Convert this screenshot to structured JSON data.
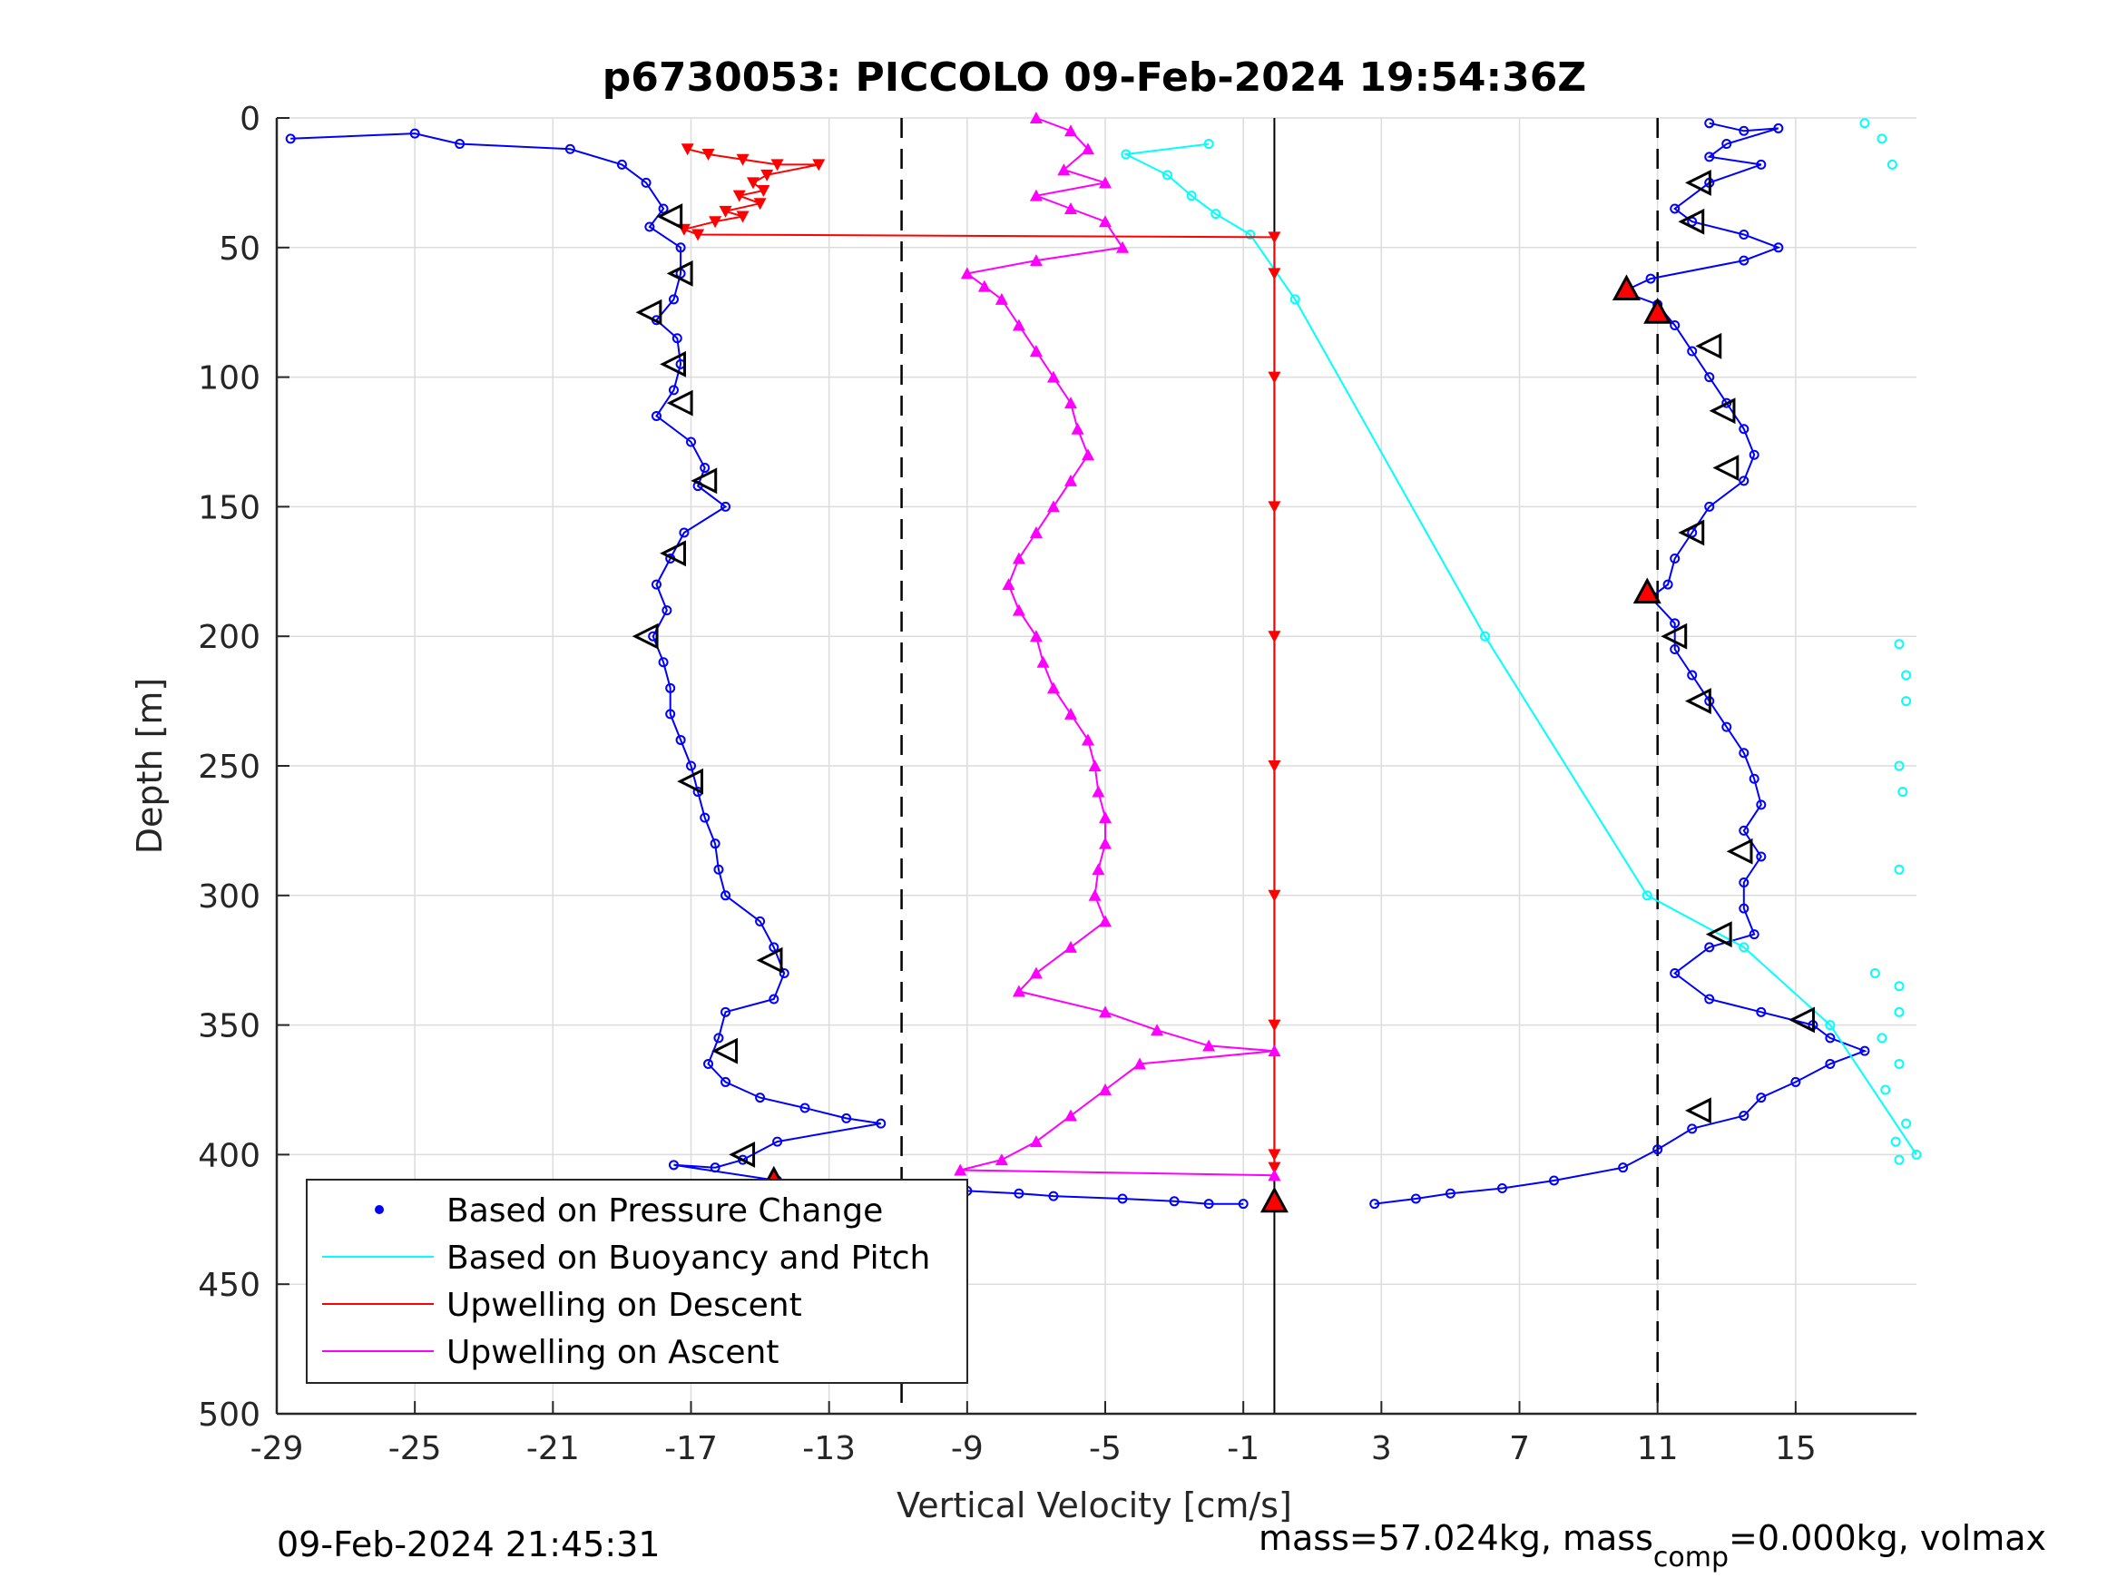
{
  "chart_data": {
    "type": "scatter",
    "title": "p6730053: PICCOLO 09-Feb-2024 19:54:36Z",
    "xlabel": "Vertical Velocity [cm/s]",
    "ylabel": "Depth [m]",
    "xlim": [
      -29,
      18.5
    ],
    "ylim": [
      0,
      500
    ],
    "y_reversed": true,
    "grid": true,
    "xticks": [
      -29,
      -25,
      -21,
      -17,
      -13,
      -9,
      -5,
      -1,
      3,
      7,
      11,
      15
    ],
    "xtick_labels": [
      "-29",
      "-25",
      "-21",
      "-17",
      "-13",
      "-9",
      "-5",
      "-1",
      "3",
      "7",
      "11",
      "15"
    ],
    "yticks": [
      0,
      50,
      100,
      150,
      200,
      250,
      300,
      350,
      400,
      450,
      500
    ],
    "ytick_labels": [
      "0",
      "50",
      "100",
      "150",
      "200",
      "250",
      "300",
      "350",
      "400",
      "450",
      "500"
    ],
    "reference_lines": {
      "dashed_x": [
        -10.9,
        11.0
      ],
      "solid_x": -0.1
    },
    "legend": {
      "position": "bottom-left",
      "entries": [
        {
          "label": "Based on Pressure Change",
          "color": "#0000ff",
          "style": "dot"
        },
        {
          "label": "Based on Buoyancy and Pitch",
          "color": "#00ffff",
          "style": "line"
        },
        {
          "label": "Upwelling on Descent",
          "color": "#ff0000",
          "style": "line"
        },
        {
          "label": "Upwelling on Ascent",
          "color": "#ff00ff",
          "style": "line"
        }
      ]
    },
    "series": [
      {
        "name": "Based on Pressure Change (descent)",
        "color": "#0000ff",
        "points": [
          [
            -28.6,
            8
          ],
          [
            -25,
            6
          ],
          [
            -23.7,
            10
          ],
          [
            -20.5,
            12
          ],
          [
            -19,
            18
          ],
          [
            -18.3,
            25
          ],
          [
            -17.8,
            35
          ],
          [
            -18.2,
            42
          ],
          [
            -17.3,
            50
          ],
          [
            -17.3,
            60
          ],
          [
            -17.5,
            70
          ],
          [
            -18,
            78
          ],
          [
            -17.4,
            85
          ],
          [
            -17.3,
            95
          ],
          [
            -17.5,
            105
          ],
          [
            -18,
            115
          ],
          [
            -17,
            125
          ],
          [
            -16.6,
            135
          ],
          [
            -16.8,
            142
          ],
          [
            -16,
            150
          ],
          [
            -17.2,
            160
          ],
          [
            -17.6,
            170
          ],
          [
            -18,
            180
          ],
          [
            -17.7,
            190
          ],
          [
            -18.1,
            200
          ],
          [
            -17.8,
            210
          ],
          [
            -17.6,
            220
          ],
          [
            -17.6,
            230
          ],
          [
            -17.3,
            240
          ],
          [
            -17,
            250
          ],
          [
            -16.8,
            260
          ],
          [
            -16.6,
            270
          ],
          [
            -16.3,
            280
          ],
          [
            -16.2,
            290
          ],
          [
            -16,
            300
          ],
          [
            -15,
            310
          ],
          [
            -14.6,
            320
          ],
          [
            -14.3,
            330
          ],
          [
            -14.6,
            340
          ],
          [
            -16,
            345
          ],
          [
            -16.2,
            355
          ],
          [
            -16.5,
            365
          ],
          [
            -16,
            372
          ],
          [
            -15,
            378
          ],
          [
            -13.7,
            382
          ],
          [
            -12.5,
            386
          ],
          [
            -11.5,
            388
          ],
          [
            -14.5,
            395
          ],
          [
            -15.5,
            402
          ],
          [
            -16.3,
            405
          ],
          [
            -17.5,
            404
          ],
          [
            -14.5,
            410
          ],
          [
            -13,
            412
          ],
          [
            -11,
            413
          ],
          [
            -9,
            414
          ],
          [
            -7.5,
            415
          ],
          [
            -6.5,
            416
          ],
          [
            -4.5,
            417
          ],
          [
            -3,
            418
          ],
          [
            -2,
            419
          ],
          [
            -1,
            419
          ]
        ]
      },
      {
        "name": "Based on Pressure Change (ascent)",
        "color": "#0000ff",
        "points": [
          [
            12.5,
            2
          ],
          [
            13.5,
            5
          ],
          [
            14.5,
            4
          ],
          [
            13,
            10
          ],
          [
            12.5,
            15
          ],
          [
            14,
            18
          ],
          [
            12.5,
            25
          ],
          [
            11.5,
            35
          ],
          [
            12,
            40
          ],
          [
            13.5,
            45
          ],
          [
            14.5,
            50
          ],
          [
            13.5,
            55
          ],
          [
            10.8,
            62
          ],
          [
            10,
            67
          ],
          [
            11,
            72
          ],
          [
            11.5,
            80
          ],
          [
            12,
            90
          ],
          [
            12.5,
            100
          ],
          [
            13,
            110
          ],
          [
            13.5,
            120
          ],
          [
            13.8,
            130
          ],
          [
            13.5,
            140
          ],
          [
            12.5,
            150
          ],
          [
            12,
            160
          ],
          [
            11.5,
            170
          ],
          [
            11.3,
            180
          ],
          [
            10.8,
            185
          ],
          [
            11.5,
            195
          ],
          [
            11.5,
            205
          ],
          [
            12,
            215
          ],
          [
            12.5,
            225
          ],
          [
            13,
            235
          ],
          [
            13.5,
            245
          ],
          [
            13.8,
            255
          ],
          [
            14,
            265
          ],
          [
            13.5,
            275
          ],
          [
            14,
            285
          ],
          [
            13.5,
            295
          ],
          [
            13.5,
            305
          ],
          [
            13.8,
            315
          ],
          [
            12.5,
            320
          ],
          [
            11.5,
            330
          ],
          [
            12.5,
            340
          ],
          [
            14,
            345
          ],
          [
            15.5,
            350
          ],
          [
            16,
            355
          ],
          [
            17,
            360
          ],
          [
            16,
            365
          ],
          [
            15,
            372
          ],
          [
            14,
            378
          ],
          [
            13.5,
            385
          ],
          [
            12,
            390
          ],
          [
            11,
            398
          ],
          [
            10,
            405
          ],
          [
            8,
            410
          ],
          [
            6.5,
            413
          ],
          [
            5,
            415
          ],
          [
            4,
            417
          ],
          [
            2.8,
            419
          ]
        ]
      },
      {
        "name": "Based on Buoyancy and Pitch",
        "color": "#00ffff",
        "points": [
          [
            -2,
            10
          ],
          [
            -4.4,
            14
          ],
          [
            -3.2,
            22
          ],
          [
            -2.5,
            30
          ],
          [
            -1.8,
            37
          ],
          [
            -0.8,
            45
          ],
          [
            0.5,
            70
          ],
          [
            6,
            200
          ],
          [
            10.7,
            300
          ],
          [
            13.5,
            320
          ],
          [
            16,
            350
          ],
          [
            18.5,
            400
          ]
        ]
      },
      {
        "name": "Based on Buoyancy and Pitch (edge)",
        "color": "#00ffff",
        "points": [
          [
            17,
            2
          ],
          [
            17.5,
            8
          ],
          [
            17.8,
            18
          ],
          [
            18,
            203
          ],
          [
            18.2,
            215
          ],
          [
            18.2,
            225
          ],
          [
            18,
            250
          ],
          [
            18.1,
            260
          ],
          [
            18,
            290
          ],
          [
            17.3,
            330
          ],
          [
            18,
            335
          ],
          [
            18,
            345
          ],
          [
            17.5,
            355
          ],
          [
            18,
            365
          ],
          [
            17.6,
            375
          ],
          [
            18.2,
            388
          ],
          [
            17.9,
            395
          ],
          [
            18,
            402
          ]
        ]
      },
      {
        "name": "Upwelling on Descent",
        "color": "#ff0000",
        "points": [
          [
            -17.1,
            12
          ],
          [
            -16.5,
            14
          ],
          [
            -15.5,
            16
          ],
          [
            -14.5,
            18
          ],
          [
            -13.3,
            18
          ],
          [
            -14.8,
            22
          ],
          [
            -15.2,
            25
          ],
          [
            -14.9,
            28
          ],
          [
            -15.6,
            30
          ],
          [
            -15,
            33
          ],
          [
            -16,
            36
          ],
          [
            -15.5,
            38
          ],
          [
            -16.3,
            40
          ],
          [
            -17.2,
            43
          ],
          [
            -16.8,
            45
          ],
          [
            -0.1,
            46
          ],
          [
            -0.1,
            60
          ],
          [
            -0.1,
            100
          ],
          [
            -0.1,
            150
          ],
          [
            -0.1,
            200
          ],
          [
            -0.1,
            250
          ],
          [
            -0.1,
            300
          ],
          [
            -0.1,
            350
          ],
          [
            -0.1,
            400
          ],
          [
            -0.1,
            405
          ]
        ]
      },
      {
        "name": "Upwelling on Ascent",
        "color": "#ff00ff",
        "points": [
          [
            -7,
            0
          ],
          [
            -6,
            5
          ],
          [
            -5.5,
            12
          ],
          [
            -6.2,
            20
          ],
          [
            -5,
            25
          ],
          [
            -7,
            30
          ],
          [
            -6,
            35
          ],
          [
            -5,
            40
          ],
          [
            -4.5,
            50
          ],
          [
            -7,
            55
          ],
          [
            -9,
            60
          ],
          [
            -8.5,
            65
          ],
          [
            -8,
            70
          ],
          [
            -7.5,
            80
          ],
          [
            -7,
            90
          ],
          [
            -6.5,
            100
          ],
          [
            -6,
            110
          ],
          [
            -5.8,
            120
          ],
          [
            -5.5,
            130
          ],
          [
            -6,
            140
          ],
          [
            -6.5,
            150
          ],
          [
            -7,
            160
          ],
          [
            -7.5,
            170
          ],
          [
            -7.8,
            180
          ],
          [
            -7.5,
            190
          ],
          [
            -7,
            200
          ],
          [
            -6.8,
            210
          ],
          [
            -6.5,
            220
          ],
          [
            -6,
            230
          ],
          [
            -5.5,
            240
          ],
          [
            -5.3,
            250
          ],
          [
            -5.2,
            260
          ],
          [
            -5,
            270
          ],
          [
            -5,
            280
          ],
          [
            -5.2,
            290
          ],
          [
            -5.3,
            300
          ],
          [
            -5,
            310
          ],
          [
            -6,
            320
          ],
          [
            -7,
            330
          ],
          [
            -7.5,
            337
          ],
          [
            -5,
            345
          ],
          [
            -3.5,
            352
          ],
          [
            -2,
            358
          ],
          [
            -0.1,
            360
          ],
          [
            -4,
            365
          ],
          [
            -5,
            375
          ],
          [
            -6,
            385
          ],
          [
            -7,
            395
          ],
          [
            -8,
            402
          ],
          [
            -9.2,
            406
          ],
          [
            -0.1,
            408
          ]
        ]
      }
    ],
    "markers": {
      "open_triangles": [
        [
          -17.6,
          38
        ],
        [
          -17.3,
          60
        ],
        [
          -18.2,
          75
        ],
        [
          -17.5,
          95
        ],
        [
          -17.3,
          110
        ],
        [
          -16.6,
          140
        ],
        [
          -17.5,
          168
        ],
        [
          -18.3,
          200
        ],
        [
          -17,
          256
        ],
        [
          -14.7,
          325
        ],
        [
          -16,
          360
        ],
        [
          -15.5,
          400
        ],
        [
          12.2,
          25
        ],
        [
          12,
          40
        ],
        [
          12.5,
          88
        ],
        [
          12.9,
          113
        ],
        [
          13,
          135
        ],
        [
          12,
          160
        ],
        [
          11.5,
          200
        ],
        [
          12.2,
          225
        ],
        [
          13.4,
          283
        ],
        [
          12.8,
          315
        ],
        [
          15.2,
          348
        ],
        [
          12.2,
          383
        ]
      ],
      "red_triangles": [
        [
          -14.6,
          410
        ],
        [
          10.1,
          66
        ],
        [
          11,
          75
        ],
        [
          10.7,
          183
        ],
        [
          -0.1,
          418
        ]
      ]
    }
  },
  "footer": {
    "timestamp": "09-Feb-2024 21:45:31",
    "mass_text_a": "mass=57.024kg, mass",
    "mass_subscript": "comp",
    "mass_text_b": "=0.000kg, volmax"
  }
}
